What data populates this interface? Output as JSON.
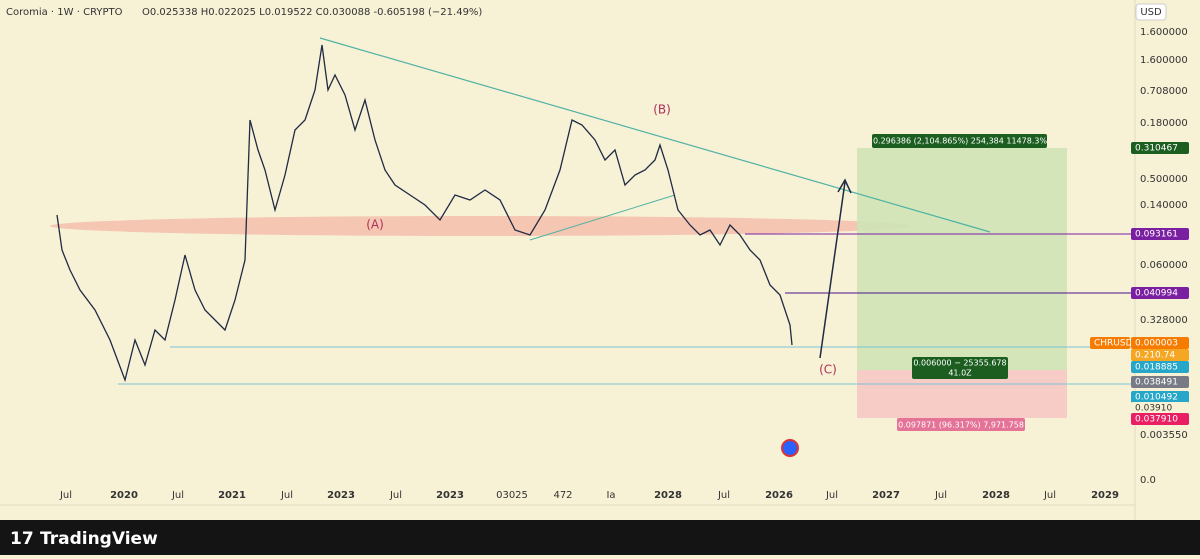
{
  "header": {
    "symbol": "Coromia · 1W · CRYPTO",
    "ohlc": "O0.025338  H0.022025  L0.019522  C0.030088  -0.605198 (−21.49%)",
    "currency": "USD"
  },
  "price_axis": [
    "1.600000",
    "1.600000",
    "0.708000",
    "0.180000",
    "0.500000",
    "0.140000",
    "0.060000",
    "0.328000",
    "0.003550",
    "0.0"
  ],
  "price_tags": [
    "0.310467",
    "0.093161",
    "0.040994",
    "CHRUSD",
    "0.000003",
    "0.210.74",
    "0.018885",
    "0.038491",
    "0.010492",
    "0.03910",
    "0.037910"
  ],
  "time_axis": [
    "Jul",
    "2020",
    "Jul",
    "2021",
    "Jul",
    "2023",
    "Jul",
    "2023",
    "03025",
    "472",
    "Ia",
    "2028",
    "Jul",
    "2026",
    "Jul",
    "2027",
    "Jul",
    "2028",
    "Jul",
    "2029"
  ],
  "annotations": {
    "wave_a": "(A)",
    "wave_b": "(B)",
    "wave_c": "(C)"
  },
  "position": {
    "target": "0.296386 (2,104.865%) 254,384 11478.3%",
    "entry": "0.006000 − 25355.678",
    "entry_detail": "41.0Z",
    "stop": "0.097871 (96.317%) 7,971.758"
  },
  "footer": {
    "brand": "TradingView"
  }
}
